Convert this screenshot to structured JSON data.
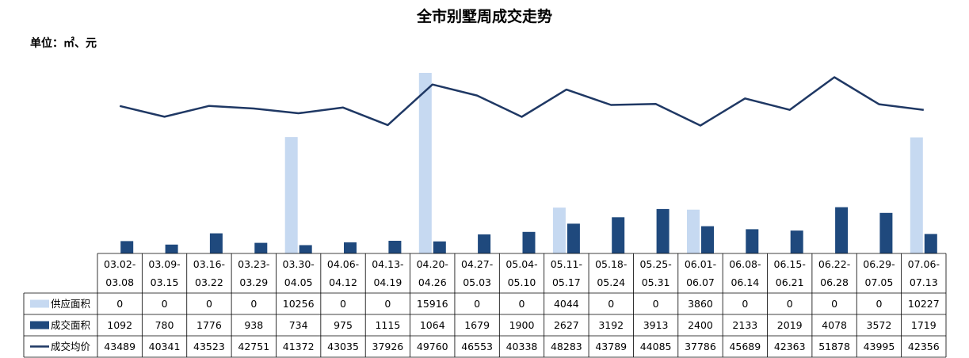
{
  "chart_data": {
    "type": "bar",
    "title": "全市别墅周成交走势",
    "unit_label": "单位：㎡、元",
    "categories": [
      [
        "03.02-",
        "03.08"
      ],
      [
        "03.09-",
        "03.15"
      ],
      [
        "03.16-",
        "03.22"
      ],
      [
        "03.23-",
        "03.29"
      ],
      [
        "03.30-",
        "04.05"
      ],
      [
        "04.06-",
        "04.12"
      ],
      [
        "04.13-",
        "04.19"
      ],
      [
        "04.20-",
        "04.26"
      ],
      [
        "04.27-",
        "05.03"
      ],
      [
        "05.04-",
        "05.10"
      ],
      [
        "05.11-",
        "05.17"
      ],
      [
        "05.18-",
        "05.24"
      ],
      [
        "05.25-",
        "05.31"
      ],
      [
        "06.01-",
        "06.07"
      ],
      [
        "06.08-",
        "06.14"
      ],
      [
        "06.15-",
        "06.21"
      ],
      [
        "06.22-",
        "06.28"
      ],
      [
        "06.29-",
        "07.05"
      ],
      [
        "07.06-",
        "07.13"
      ]
    ],
    "series": [
      {
        "name": "供应面积",
        "kind": "bar",
        "color": "#c6d9f1",
        "values": [
          0,
          0,
          0,
          0,
          10256,
          0,
          0,
          15916,
          0,
          0,
          4044,
          0,
          0,
          3860,
          0,
          0,
          0,
          0,
          10227
        ]
      },
      {
        "name": "成交面积",
        "kind": "bar",
        "color": "#1f497d",
        "values": [
          1092,
          780,
          1776,
          938,
          734,
          975,
          1115,
          1064,
          1679,
          1900,
          2627,
          3192,
          3913,
          2400,
          2133,
          2019,
          4078,
          3572,
          1719
        ]
      },
      {
        "name": "成交均价",
        "kind": "line",
        "color": "#1f3864",
        "values": [
          43489,
          40341,
          43523,
          42751,
          41372,
          43035,
          37926,
          49760,
          46553,
          40338,
          48283,
          43789,
          44085,
          37786,
          45689,
          42363,
          51878,
          43995,
          42356
        ]
      }
    ],
    "legend": "table-left",
    "grid": false
  }
}
